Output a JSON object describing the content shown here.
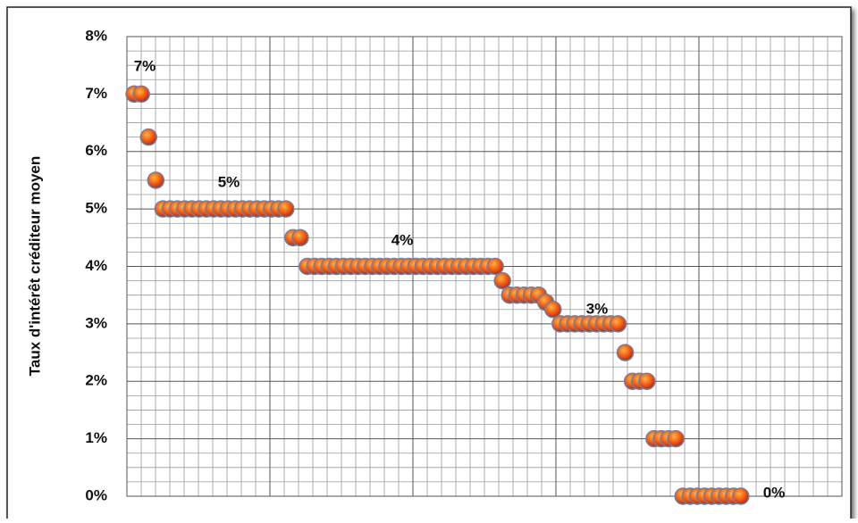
{
  "chart_data": {
    "type": "scatter",
    "y_label": "Taux d'intérêt créditeur moyen",
    "x": [
      1,
      2,
      3,
      4,
      5,
      6,
      7,
      8,
      9,
      10,
      11,
      12,
      13,
      14,
      15,
      16,
      17,
      18,
      19,
      20,
      21,
      22,
      23,
      24,
      25,
      26,
      27,
      28,
      29,
      30,
      31,
      32,
      33,
      34,
      35,
      36,
      37,
      38,
      39,
      40,
      41,
      42,
      43,
      44,
      45,
      46,
      47,
      48,
      49,
      50,
      51,
      52,
      53,
      54,
      55,
      56,
      57,
      58,
      59,
      60,
      61,
      62,
      63,
      64,
      65,
      66,
      67,
      68,
      69,
      70,
      71,
      72,
      73,
      74,
      75,
      76,
      77,
      78,
      79,
      80,
      81,
      82,
      83,
      84,
      85
    ],
    "values": [
      7,
      7,
      6.25,
      5.5,
      5,
      5,
      5,
      5,
      5,
      5,
      5,
      5,
      5,
      5,
      5,
      5,
      5,
      5,
      5,
      5,
      5,
      5,
      4.5,
      4.5,
      4,
      4,
      4,
      4,
      4,
      4,
      4,
      4,
      4,
      4,
      4,
      4,
      4,
      4,
      4,
      4,
      4,
      4,
      4,
      4,
      4,
      4,
      4,
      4,
      4,
      4,
      4,
      3.75,
      3.5,
      3.5,
      3.5,
      3.5,
      3.5,
      3.375,
      3.25,
      3,
      3,
      3,
      3,
      3,
      3,
      3,
      3,
      3,
      2.5,
      2,
      2,
      2,
      1,
      1,
      1,
      1,
      0,
      0,
      0,
      0,
      0,
      0,
      0,
      0,
      0
    ],
    "color": "#e8400c",
    "xlim": [
      0,
      99
    ],
    "ylim": [
      0,
      8
    ],
    "yticks": [
      {
        "value": 0,
        "label": "0%"
      },
      {
        "value": 1,
        "label": "1%"
      },
      {
        "value": 2,
        "label": "2%"
      },
      {
        "value": 3,
        "label": "3%"
      },
      {
        "value": 4,
        "label": "4%"
      },
      {
        "value": 5,
        "label": "5%"
      },
      {
        "value": 6,
        "label": "6%"
      },
      {
        "value": 7,
        "label": "7%"
      },
      {
        "value": 8,
        "label": "8%"
      }
    ],
    "grid": true,
    "annotations": [
      "7%",
      "5%",
      "4%",
      "3%",
      "0%"
    ]
  }
}
